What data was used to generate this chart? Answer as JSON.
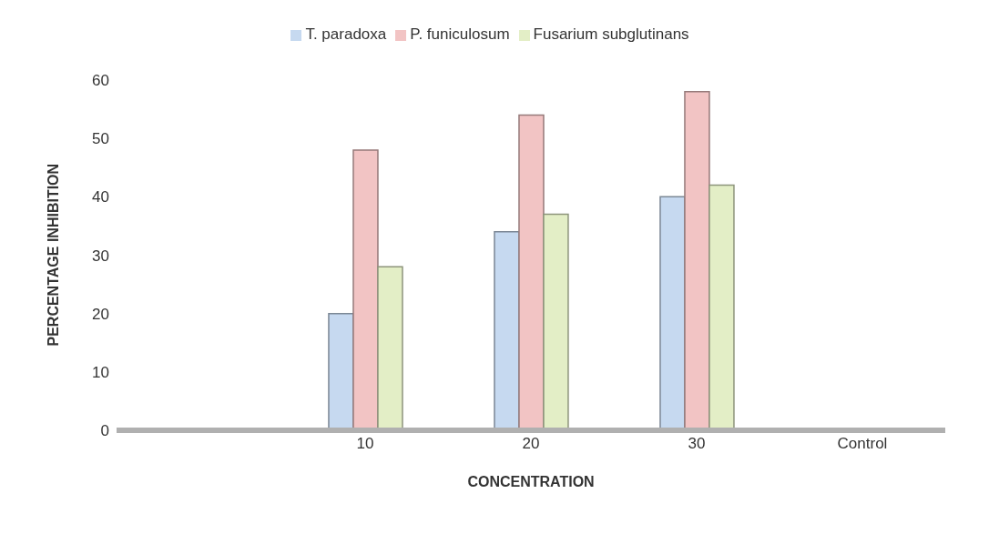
{
  "chart_data": {
    "type": "bar",
    "xlabel": "CONCENTRATION",
    "ylabel": "PERCENTAGE INHIBITION",
    "categories": [
      null,
      "10",
      "20",
      "30",
      "Control"
    ],
    "series": [
      {
        "name": "T. paradoxa",
        "color": "#c6d9f0",
        "values": [
          null,
          20,
          34,
          40,
          0
        ]
      },
      {
        "name": "P. funiculosum",
        "color": "#f2c4c4",
        "values": [
          null,
          48,
          54,
          58,
          0
        ]
      },
      {
        "name": "Fusarium subglutinans",
        "color": "#e3eec6",
        "values": [
          null,
          28,
          37,
          42,
          0
        ]
      }
    ],
    "ylim": [
      0,
      60
    ],
    "yticks": [
      0,
      10,
      20,
      30,
      40,
      50,
      60
    ],
    "grid": false,
    "legend": "top"
  }
}
